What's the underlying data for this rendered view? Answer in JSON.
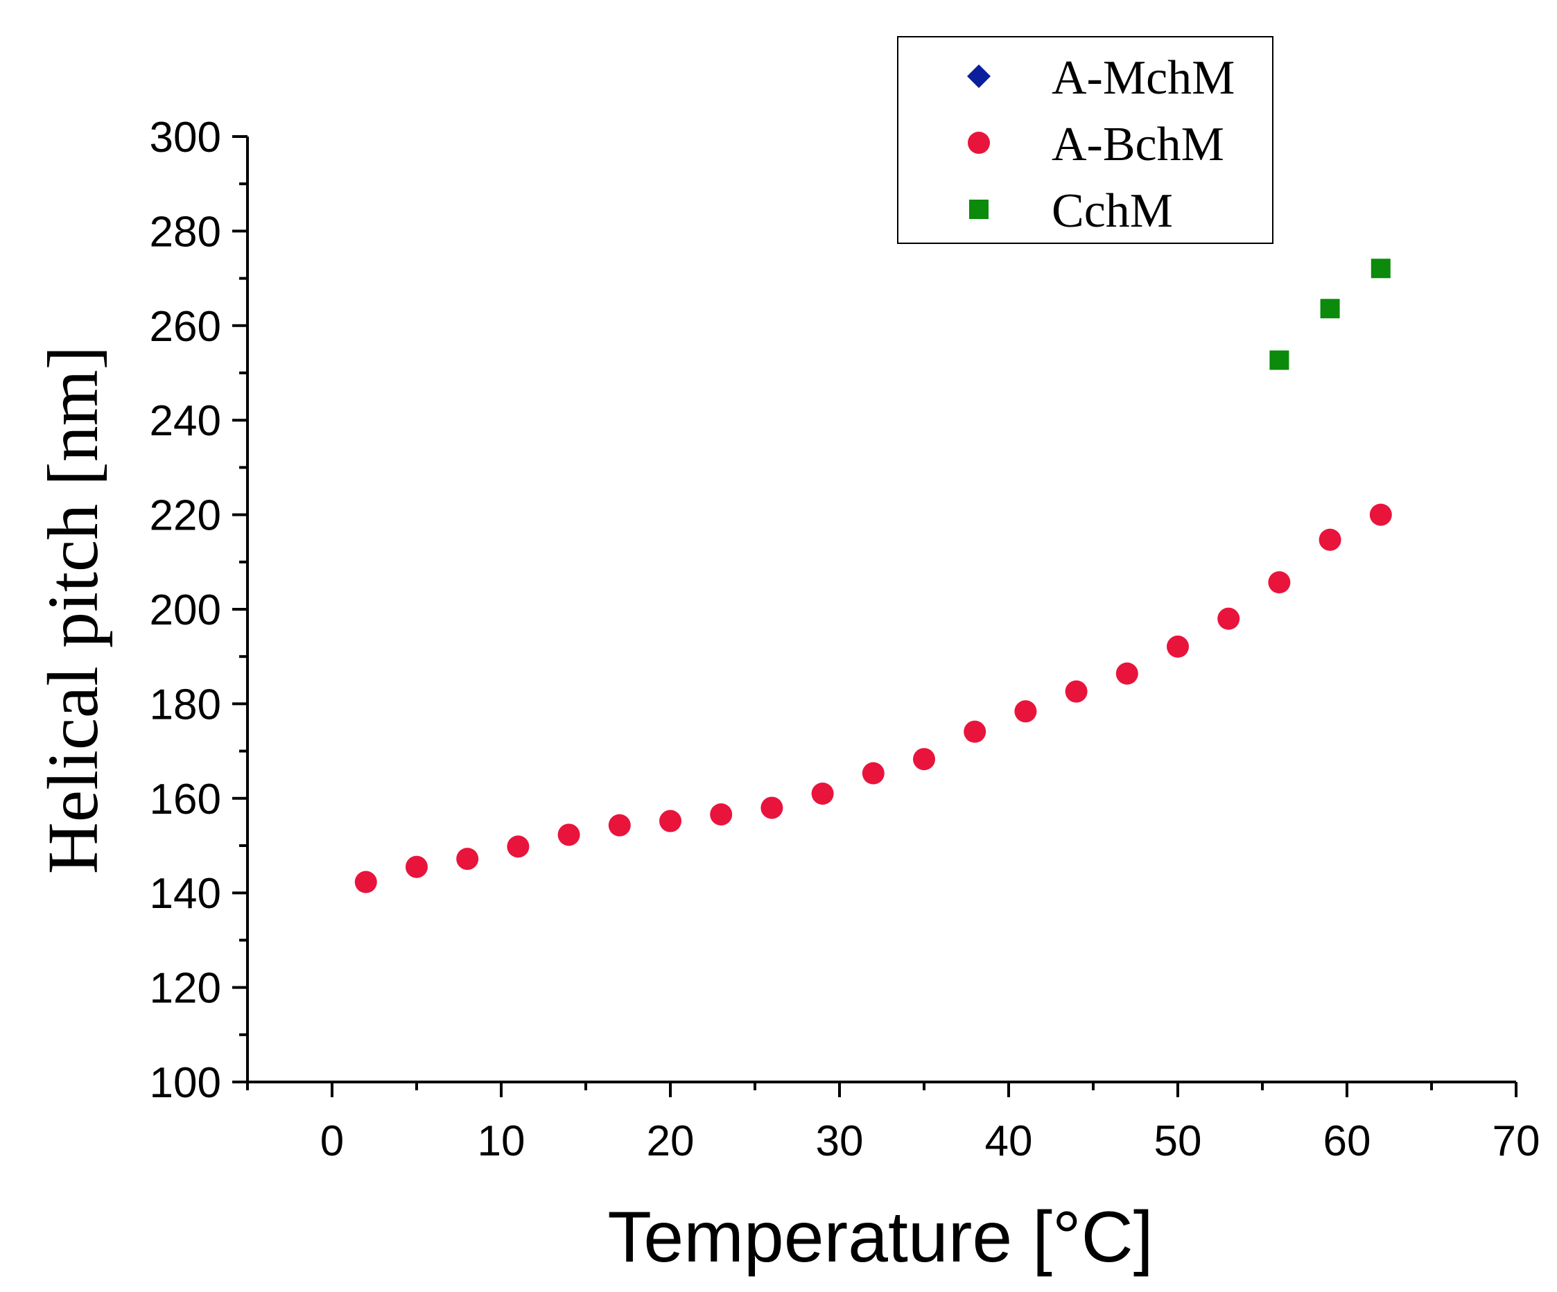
{
  "chart_data": {
    "type": "scatter",
    "title": "",
    "xlabel": "Temperature [°C]",
    "ylabel": "Helical pitch [nm]",
    "xlim": [
      -5,
      70
    ],
    "ylim": [
      100,
      300
    ],
    "x_ticks": [
      0,
      10,
      20,
      30,
      40,
      50,
      60,
      70
    ],
    "y_ticks": [
      100,
      120,
      140,
      160,
      180,
      200,
      220,
      240,
      260,
      280,
      300
    ],
    "grid": false,
    "legend_position": "top-right",
    "series": [
      {
        "name": "A-MchM",
        "marker": "diamond",
        "color": "#0a1f9c",
        "points": []
      },
      {
        "name": "A-BchM",
        "marker": "circle",
        "color": "#e8143c",
        "points": [
          [
            2,
            142.3
          ],
          [
            5,
            145.5
          ],
          [
            8,
            147.2
          ],
          [
            11,
            149.8
          ],
          [
            14,
            152.3
          ],
          [
            17,
            154.3
          ],
          [
            20,
            155.2
          ],
          [
            23,
            156.6
          ],
          [
            26,
            158
          ],
          [
            29,
            161
          ],
          [
            32,
            165.3
          ],
          [
            35,
            168.3
          ],
          [
            38,
            174.1
          ],
          [
            41,
            178.4
          ],
          [
            44,
            182.6
          ],
          [
            47,
            186.4
          ],
          [
            50,
            192.1
          ],
          [
            53,
            198
          ],
          [
            56,
            205.7
          ],
          [
            59,
            214.7
          ],
          [
            62,
            220
          ]
        ]
      },
      {
        "name": "CchM",
        "marker": "square",
        "color": "#0b8a0b",
        "points": [
          [
            56,
            252.7
          ],
          [
            59,
            263.6
          ],
          [
            62,
            272.1
          ]
        ]
      }
    ]
  }
}
